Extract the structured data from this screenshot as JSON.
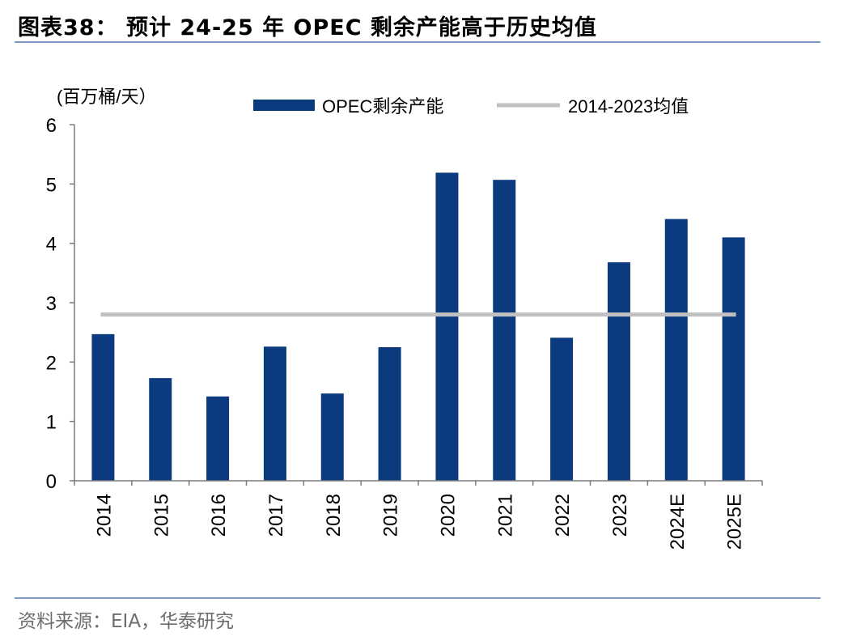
{
  "figure_title": "图表38： 预计 24-25 年 OPEC 剩余产能高于历史均值",
  "source_note": "资料来源：EIA，华泰研究",
  "colors": {
    "bar": "#0b3a7e",
    "average_line": "#c0c0c0",
    "rule": "#7f97c4"
  },
  "chart_data": {
    "type": "bar",
    "title": "预计 24-25 年 OPEC 剩余产能高于历史均值",
    "ylabel": "(百万桶/天）",
    "xlabel": "",
    "ylim": [
      0,
      6
    ],
    "yticks": [
      "0",
      "1",
      "2",
      "3",
      "4",
      "5",
      "6"
    ],
    "categories": [
      "2014",
      "2015",
      "2016",
      "2017",
      "2018",
      "2019",
      "2020",
      "2021",
      "2022",
      "2023",
      "2024E",
      "2025E"
    ],
    "series": [
      {
        "name": "OPEC剩余产能",
        "type": "bar",
        "values": [
          2.47,
          1.73,
          1.42,
          2.26,
          1.47,
          2.25,
          5.19,
          5.07,
          2.41,
          3.68,
          4.41,
          4.1
        ]
      },
      {
        "name": "2014-2023均值",
        "type": "line",
        "value": 2.8
      }
    ],
    "legend_position": "top"
  }
}
